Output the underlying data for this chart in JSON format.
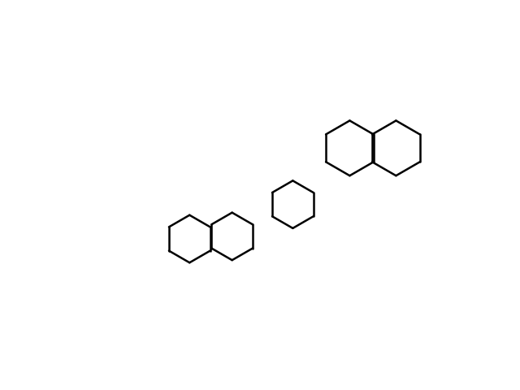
{
  "bg": "#ffffff",
  "lw": 1.8,
  "lw2": 1.4,
  "fs": 10.5,
  "fs2": 9.5
}
